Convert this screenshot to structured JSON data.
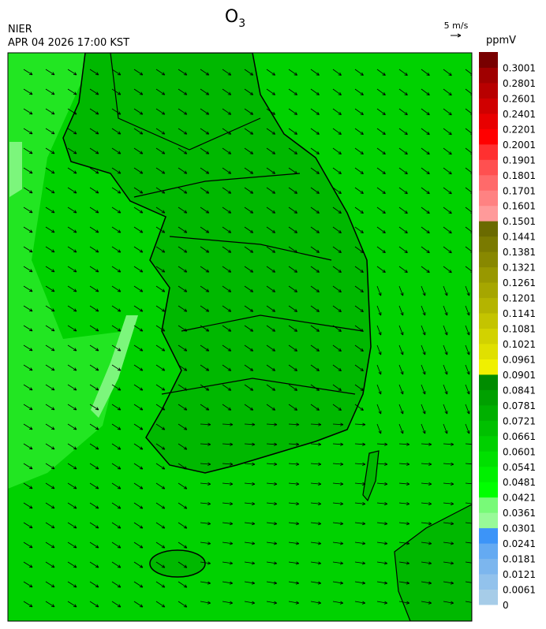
{
  "header": {
    "title": "O",
    "title_subscript": "3",
    "agency": "NIER",
    "datetime": "APR 04 2026 17:00 KST"
  },
  "wind_scale": {
    "label": "5 m/s"
  },
  "colorbar": {
    "unit": "ppmV",
    "labels": [
      "0",
      "0.0061",
      "0.0121",
      "0.0181",
      "0.0241",
      "0.0301",
      "0.0361",
      "0.0421",
      "0.0481",
      "0.0541",
      "0.0601",
      "0.0661",
      "0.0721",
      "0.0781",
      "0.0841",
      "0.0901",
      "0.0961",
      "0.1021",
      "0.1081",
      "0.1141",
      "0.1201",
      "0.1261",
      "0.1321",
      "0.1381",
      "0.1441",
      "0.1501",
      "0.1601",
      "0.1701",
      "0.1801",
      "0.1901",
      "0.2001",
      "0.2201",
      "0.2401",
      "0.2601",
      "0.2801",
      "0.3001"
    ],
    "colors": [
      "#a6cce8",
      "#92c2ec",
      "#7cb6ee",
      "#64aaf2",
      "#3c94f8",
      "#98fa98",
      "#78fa78",
      "#00ff00",
      "#00f000",
      "#00e000",
      "#00d000",
      "#00c000",
      "#00b000",
      "#00a000",
      "#008c00",
      "#f0f000",
      "#e0e000",
      "#d2d200",
      "#c4c400",
      "#b4b400",
      "#a6a600",
      "#989800",
      "#888800",
      "#7a7a00",
      "#6a6a00",
      "#ff9a9a",
      "#ff8282",
      "#ff6a6a",
      "#ff5050",
      "#ff3030",
      "#ff0000",
      "#e80000",
      "#d00000",
      "#b80000",
      "#a00000",
      "#780000"
    ]
  }
}
